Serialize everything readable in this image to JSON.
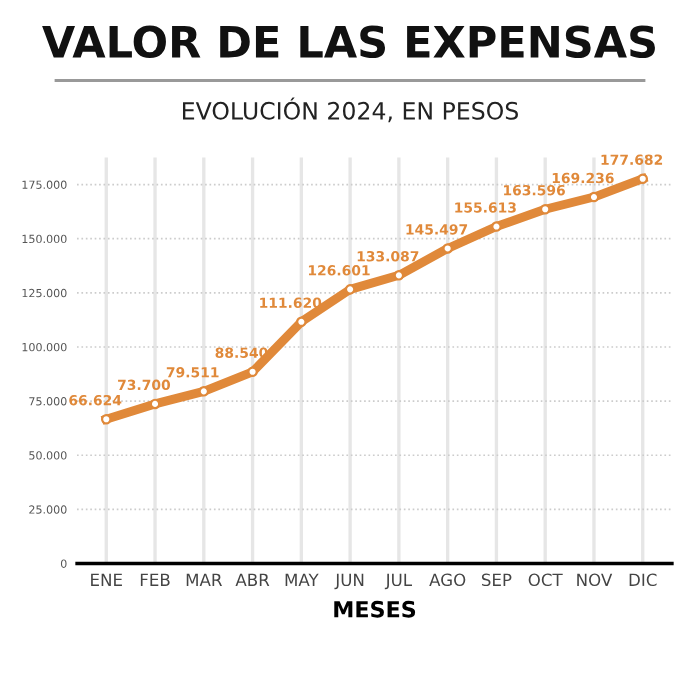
{
  "chart_data": {
    "type": "line",
    "title": "VALOR DE LAS EXPENSAS",
    "subtitle": "EVOLUCIÓN 2024, EN PESOS",
    "xlabel": "MESES",
    "categories": [
      "ENE",
      "FEB",
      "MAR",
      "ABR",
      "MAY",
      "JUN",
      "JUL",
      "AGO",
      "SEP",
      "OCT",
      "NOV",
      "DIC"
    ],
    "series": [
      {
        "color": "#e0893a",
        "values": [
          66624,
          73700,
          79511,
          88540,
          111620,
          126601,
          133087,
          145497,
          155613,
          163596,
          169236,
          177682
        ],
        "value_labels": [
          "66.624",
          "73.700",
          "79.511",
          "88.540",
          "111.620",
          "126.601",
          "133.087",
          "145.497",
          "155.613",
          "163.596",
          "169.236",
          "177.682"
        ]
      }
    ],
    "ylim": [
      0,
      187500
    ],
    "yticks": [
      0,
      {
        "value": 25000,
        "label": "25.000"
      },
      {
        "value": 50000,
        "label": "50.000"
      },
      {
        "value": 75000,
        "label": "75.000"
      },
      {
        "value": 100000,
        "label": "100.000"
      },
      {
        "value": 125000,
        "label": "125.000"
      },
      {
        "value": 150000,
        "label": "150.000"
      },
      {
        "value": 175000,
        "label": "175.000"
      }
    ],
    "grid": true,
    "marker": "circle",
    "line_style": "solid"
  }
}
